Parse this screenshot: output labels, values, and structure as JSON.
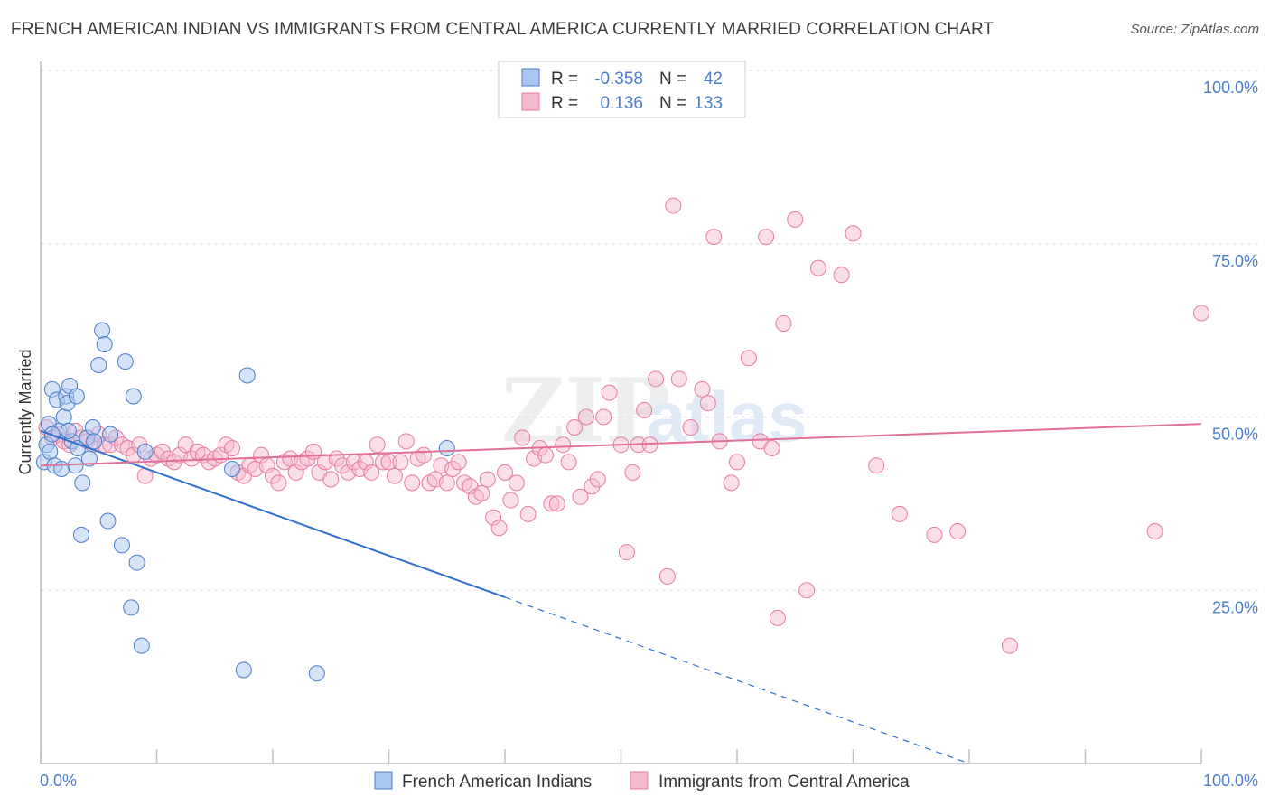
{
  "title": "FRENCH AMERICAN INDIAN VS IMMIGRANTS FROM CENTRAL AMERICA CURRENTLY MARRIED CORRELATION CHART",
  "source": "Source: ZipAtlas.com",
  "watermark": "ZIPatlas",
  "colors": {
    "blue": "#4a7cc9",
    "blue_fill": "#aac8ef",
    "blue_line": "#2f6fcf",
    "pink": "#e87aa0",
    "pink_fill": "#f6b8cc",
    "pink_line": "#e0709a",
    "grid": "#dddddd",
    "axis_label": "#4a7cc9"
  },
  "legend": {
    "rows": [
      {
        "r_label": "R =",
        "r_value": "-0.358",
        "n_label": "N =",
        "n_value": "42",
        "series": "blue"
      },
      {
        "r_label": "R =",
        "r_value": "0.136",
        "n_label": "N =",
        "n_value": "133",
        "series": "pink"
      }
    ]
  },
  "bottom_legend": [
    {
      "label": "French American Indians",
      "series": "blue"
    },
    {
      "label": "Immigrants from Central America",
      "series": "pink"
    }
  ],
  "chart_data": {
    "type": "scatter",
    "title": "FRENCH AMERICAN INDIAN VS IMMIGRANTS FROM CENTRAL AMERICA CURRENTLY MARRIED CORRELATION CHART",
    "xlabel": "",
    "ylabel": "Currently Married",
    "xlim": [
      0,
      100
    ],
    "ylim": [
      0,
      100
    ],
    "x_tick_labels": [
      "0.0%",
      "100.0%"
    ],
    "y_tick_labels": [
      "100.0%",
      "75.0%",
      "50.0%",
      "25.0%"
    ],
    "y_ticks": [
      100,
      75,
      50,
      25
    ],
    "grid": true,
    "legend_position": "top-center",
    "series": [
      {
        "name": "French American Indians",
        "color": "blue",
        "R": -0.358,
        "N": 42,
        "trend": {
          "x0": 0,
          "y0": 48.0,
          "x1": 40,
          "y1": 24.0,
          "dashed_to_x": 80
        },
        "points": [
          [
            0.3,
            43.5
          ],
          [
            0.5,
            46.0
          ],
          [
            0.7,
            49.0
          ],
          [
            0.8,
            45.0
          ],
          [
            1.0,
            54.0
          ],
          [
            1.2,
            43.0
          ],
          [
            1.4,
            52.5
          ],
          [
            1.6,
            48.0
          ],
          [
            1.8,
            42.5
          ],
          [
            2.0,
            50.0
          ],
          [
            2.2,
            53.0
          ],
          [
            2.3,
            52.0
          ],
          [
            2.5,
            54.5
          ],
          [
            2.7,
            46.5
          ],
          [
            3.0,
            43.0
          ],
          [
            3.1,
            53.0
          ],
          [
            3.2,
            45.5
          ],
          [
            3.5,
            33.0
          ],
          [
            3.6,
            40.5
          ],
          [
            4.0,
            47.0
          ],
          [
            4.2,
            44.0
          ],
          [
            4.5,
            48.5
          ],
          [
            4.6,
            46.5
          ],
          [
            5.0,
            57.5
          ],
          [
            5.3,
            62.5
          ],
          [
            5.5,
            60.5
          ],
          [
            5.8,
            35.0
          ],
          [
            6.0,
            47.5
          ],
          [
            7.0,
            31.5
          ],
          [
            7.3,
            58.0
          ],
          [
            7.8,
            22.5
          ],
          [
            8.0,
            53.0
          ],
          [
            8.3,
            29.0
          ],
          [
            8.7,
            17.0
          ],
          [
            9.0,
            45.0
          ],
          [
            16.5,
            42.5
          ],
          [
            17.5,
            13.5
          ],
          [
            17.8,
            56.0
          ],
          [
            23.8,
            13.0
          ],
          [
            35.0,
            45.5
          ],
          [
            1.0,
            47.5
          ],
          [
            2.4,
            48.0
          ]
        ]
      },
      {
        "name": "Immigrants from Central America",
        "color": "pink",
        "R": 0.136,
        "N": 133,
        "trend": {
          "x0": 0,
          "y0": 43.0,
          "x1": 100,
          "y1": 49.0
        },
        "points": [
          [
            0.5,
            48.5
          ],
          [
            1.0,
            47.0
          ],
          [
            1.5,
            47.5
          ],
          [
            2.0,
            46.5
          ],
          [
            2.5,
            46.0
          ],
          [
            3.0,
            48.0
          ],
          [
            3.5,
            47.0
          ],
          [
            4.0,
            46.5
          ],
          [
            4.5,
            46.0
          ],
          [
            5.0,
            47.5
          ],
          [
            5.5,
            46.0
          ],
          [
            6.0,
            46.0
          ],
          [
            6.5,
            47.0
          ],
          [
            7.0,
            46.0
          ],
          [
            7.5,
            45.5
          ],
          [
            8.0,
            44.5
          ],
          [
            8.5,
            46.0
          ],
          [
            9.0,
            41.5
          ],
          [
            9.5,
            44.0
          ],
          [
            10.0,
            44.5
          ],
          [
            10.5,
            45.0
          ],
          [
            11.0,
            44.0
          ],
          [
            11.5,
            43.5
          ],
          [
            12.0,
            44.5
          ],
          [
            12.5,
            46.0
          ],
          [
            13.0,
            44.0
          ],
          [
            13.5,
            45.0
          ],
          [
            14.0,
            44.5
          ],
          [
            14.5,
            43.5
          ],
          [
            15.0,
            44.0
          ],
          [
            15.5,
            44.5
          ],
          [
            16.0,
            46.0
          ],
          [
            16.5,
            45.5
          ],
          [
            17.0,
            42.0
          ],
          [
            17.5,
            41.5
          ],
          [
            18.0,
            43.0
          ],
          [
            18.5,
            42.5
          ],
          [
            19.0,
            44.5
          ],
          [
            19.5,
            43.0
          ],
          [
            20.0,
            41.5
          ],
          [
            20.5,
            40.5
          ],
          [
            21.0,
            43.5
          ],
          [
            21.5,
            44.0
          ],
          [
            22.0,
            42.0
          ],
          [
            22.5,
            43.5
          ],
          [
            23.0,
            44.0
          ],
          [
            23.5,
            45.0
          ],
          [
            24.0,
            42.0
          ],
          [
            24.5,
            43.5
          ],
          [
            25.0,
            41.0
          ],
          [
            25.5,
            44.0
          ],
          [
            26.0,
            43.0
          ],
          [
            26.5,
            42.0
          ],
          [
            27.0,
            43.5
          ],
          [
            27.5,
            42.5
          ],
          [
            28.0,
            43.5
          ],
          [
            28.5,
            42.0
          ],
          [
            29.0,
            46.0
          ],
          [
            29.5,
            43.5
          ],
          [
            30.0,
            43.5
          ],
          [
            30.5,
            41.5
          ],
          [
            31.0,
            43.5
          ],
          [
            31.5,
            46.5
          ],
          [
            32.0,
            40.5
          ],
          [
            32.5,
            44.0
          ],
          [
            33.0,
            44.5
          ],
          [
            33.5,
            40.5
          ],
          [
            34.0,
            41.0
          ],
          [
            34.5,
            43.0
          ],
          [
            35.0,
            40.5
          ],
          [
            35.5,
            42.5
          ],
          [
            36.0,
            43.5
          ],
          [
            36.5,
            40.5
          ],
          [
            37.0,
            40.0
          ],
          [
            37.5,
            38.5
          ],
          [
            38.0,
            39.0
          ],
          [
            38.5,
            41.0
          ],
          [
            39.0,
            35.5
          ],
          [
            39.5,
            34.0
          ],
          [
            40.0,
            42.0
          ],
          [
            40.5,
            38.0
          ],
          [
            41.0,
            40.5
          ],
          [
            41.5,
            47.0
          ],
          [
            42.0,
            36.0
          ],
          [
            42.5,
            44.0
          ],
          [
            43.0,
            45.5
          ],
          [
            43.5,
            44.5
          ],
          [
            44.0,
            37.5
          ],
          [
            44.5,
            37.5
          ],
          [
            45.0,
            46.0
          ],
          [
            45.5,
            43.5
          ],
          [
            46.0,
            48.5
          ],
          [
            46.5,
            38.5
          ],
          [
            47.0,
            50.0
          ],
          [
            47.5,
            40.0
          ],
          [
            48.0,
            41.0
          ],
          [
            48.5,
            50.0
          ],
          [
            49.0,
            53.5
          ],
          [
            50.0,
            46.0
          ],
          [
            50.5,
            30.5
          ],
          [
            51.0,
            42.0
          ],
          [
            51.5,
            46.0
          ],
          [
            52.0,
            51.0
          ],
          [
            53.0,
            55.5
          ],
          [
            54.0,
            27.0
          ],
          [
            54.5,
            80.5
          ],
          [
            55.0,
            55.5
          ],
          [
            56.0,
            48.5
          ],
          [
            57.0,
            54.0
          ],
          [
            57.5,
            52.0
          ],
          [
            58.0,
            76.0
          ],
          [
            58.5,
            46.5
          ],
          [
            59.5,
            40.5
          ],
          [
            60.0,
            43.5
          ],
          [
            61.0,
            58.5
          ],
          [
            62.0,
            46.5
          ],
          [
            62.5,
            76.0
          ],
          [
            63.0,
            45.5
          ],
          [
            63.5,
            21.0
          ],
          [
            64.0,
            63.5
          ],
          [
            65.0,
            78.5
          ],
          [
            66.0,
            25.0
          ],
          [
            67.0,
            71.5
          ],
          [
            69.0,
            70.5
          ],
          [
            70.0,
            76.5
          ],
          [
            72.0,
            43.0
          ],
          [
            74.0,
            36.0
          ],
          [
            77.0,
            33.0
          ],
          [
            79.0,
            33.5
          ],
          [
            83.5,
            17.0
          ],
          [
            96.0,
            33.5
          ],
          [
            100.0,
            65.0
          ],
          [
            52.5,
            46.0
          ]
        ]
      }
    ]
  }
}
